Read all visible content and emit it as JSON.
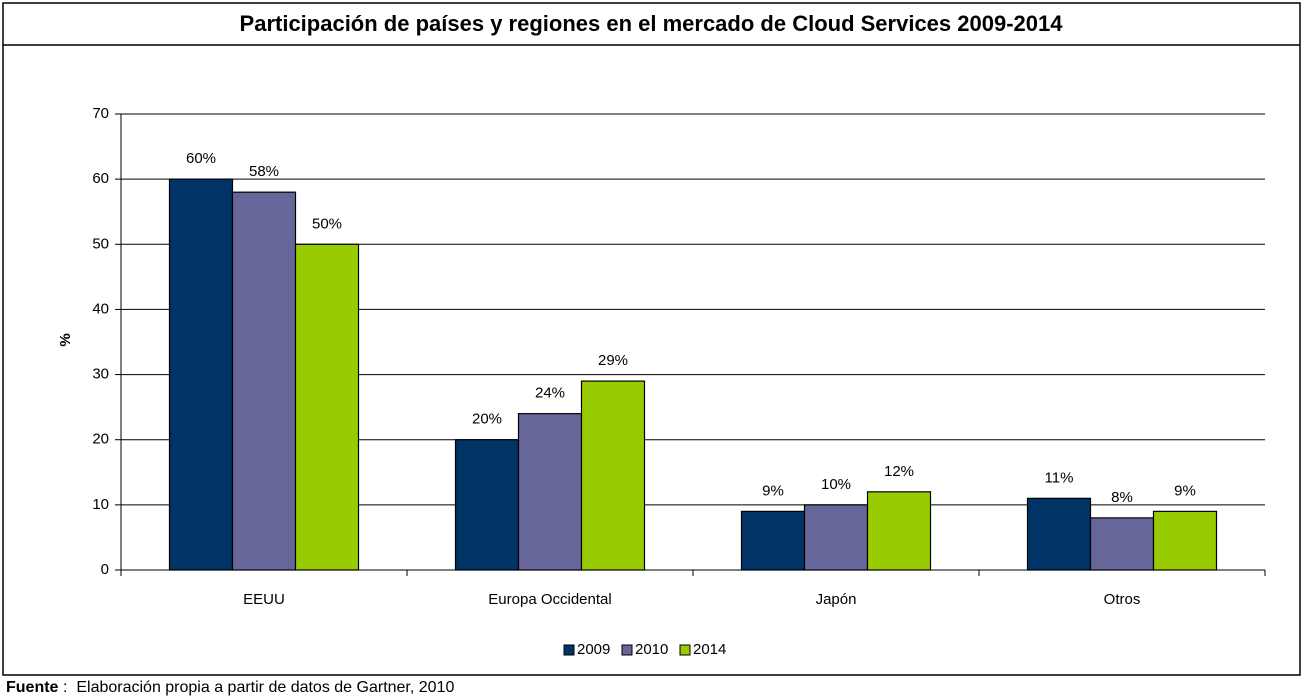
{
  "chart_data": {
    "type": "bar",
    "title": "Participación de países y regiones en el mercado de Cloud Services 2009-2014",
    "ylabel": "%",
    "categories": [
      "EEUU",
      "Europa Occidental",
      "Japón",
      "Otros"
    ],
    "series": [
      {
        "name": "2009",
        "color": "#003366",
        "values": [
          60,
          20,
          9,
          11
        ],
        "value_labels": [
          "60%",
          "20%",
          "9%",
          "11%"
        ]
      },
      {
        "name": "2010",
        "color": "#666699",
        "values": [
          58,
          24,
          10,
          8
        ],
        "value_labels": [
          "58%",
          "24%",
          "10%",
          "8%"
        ]
      },
      {
        "name": "2014",
        "color": "#99cc00",
        "values": [
          50,
          29,
          12,
          9
        ],
        "value_labels": [
          "50%",
          "29%",
          "12%",
          "9%"
        ]
      }
    ],
    "ylim": [
      0,
      70
    ],
    "yticks": [
      0,
      10,
      20,
      30,
      40,
      50,
      60,
      70
    ],
    "grid": true,
    "legend": "bottom",
    "source_label": "Fuente",
    "source_text": ":  Elaboración propia a partir de datos de Gartner, 2010"
  }
}
